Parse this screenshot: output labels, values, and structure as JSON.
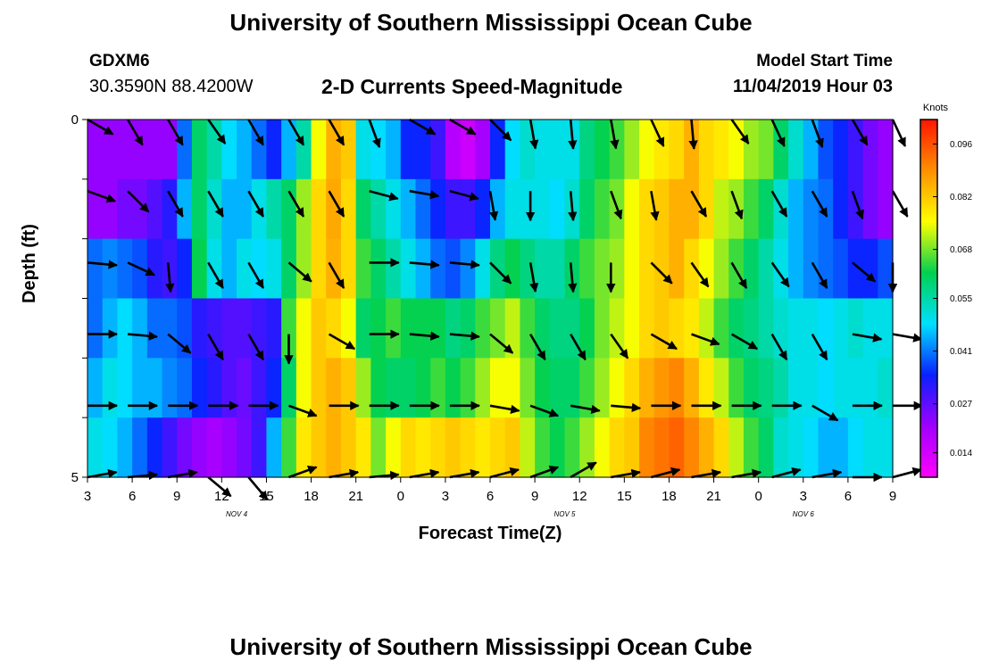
{
  "header": {
    "title": "University of Southern Mississippi Ocean Cube",
    "station": "GDXM6",
    "coordinates": "30.3590N 88.4200W",
    "subtitle": "2-D Currents Speed-Magnitude",
    "model_start_label": "Model Start Time",
    "model_start_value": "11/04/2019 Hour 03"
  },
  "footer": {
    "title": "University of Southern Mississippi Ocean Cube"
  },
  "chart_data": {
    "type": "heatmap",
    "title": "2-D Currents Speed-Magnitude",
    "xlabel": "Forecast Time(Z)",
    "ylabel": "Depth (ft)",
    "x_tick_labels": [
      "3",
      "6",
      "9",
      "12",
      "15",
      "18",
      "21",
      "0",
      "3",
      "6",
      "9",
      "12",
      "15",
      "18",
      "21",
      "0",
      "3",
      "6",
      "9"
    ],
    "date_labels": [
      {
        "label": "NOV 4",
        "hours_from_start": 10
      },
      {
        "label": "NOV 5",
        "hours_from_start": 32
      },
      {
        "label": "NOV 6",
        "hours_from_start": 48
      }
    ],
    "y_tick_labels": [
      "0",
      "5"
    ],
    "y_range_ft": [
      0,
      5
    ],
    "depth_rows": 5,
    "hours_range": [
      0,
      54
    ],
    "colorbar": {
      "unit": "Knots",
      "ticks": [
        "0.096",
        "0.082",
        "0.068",
        "0.055",
        "0.041",
        "0.027",
        "0.014"
      ],
      "range": [
        0.0075,
        0.1025
      ],
      "stops": [
        "#ff00ff",
        "#a000ff",
        "#0a20ff",
        "#00e0ff",
        "#00d050",
        "#ffff00",
        "#ff9000",
        "#ff1500"
      ]
    },
    "speed_knots": [
      [
        0.022,
        0.022,
        0.022,
        0.022,
        0.022,
        0.022,
        0.04,
        0.06,
        0.055,
        0.048,
        0.045,
        0.04,
        0.035,
        0.045,
        0.055,
        0.075,
        0.085,
        0.082,
        0.05,
        0.048,
        0.045,
        0.035,
        0.035,
        0.03,
        0.018,
        0.015,
        0.02,
        0.035,
        0.048,
        0.052,
        0.05,
        0.05,
        0.05,
        0.058,
        0.062,
        0.065,
        0.07,
        0.075,
        0.078,
        0.08,
        0.085,
        0.08,
        0.078,
        0.075,
        0.07,
        0.068,
        0.06,
        0.052,
        0.045,
        0.038,
        0.035,
        0.03,
        0.025,
        0.022
      ],
      [
        0.022,
        0.022,
        0.025,
        0.025,
        0.028,
        0.032,
        0.045,
        0.06,
        0.052,
        0.045,
        0.045,
        0.05,
        0.055,
        0.06,
        0.07,
        0.08,
        0.086,
        0.08,
        0.06,
        0.055,
        0.05,
        0.045,
        0.04,
        0.035,
        0.03,
        0.03,
        0.035,
        0.045,
        0.05,
        0.05,
        0.05,
        0.048,
        0.052,
        0.06,
        0.065,
        0.068,
        0.075,
        0.08,
        0.082,
        0.085,
        0.085,
        0.08,
        0.072,
        0.07,
        0.065,
        0.06,
        0.052,
        0.045,
        0.042,
        0.04,
        0.035,
        0.03,
        0.025,
        0.022
      ],
      [
        0.04,
        0.042,
        0.04,
        0.038,
        0.032,
        0.03,
        0.035,
        0.062,
        0.05,
        0.045,
        0.05,
        0.048,
        0.05,
        0.06,
        0.07,
        0.08,
        0.085,
        0.08,
        0.065,
        0.06,
        0.055,
        0.05,
        0.045,
        0.04,
        0.038,
        0.042,
        0.05,
        0.058,
        0.062,
        0.058,
        0.055,
        0.055,
        0.06,
        0.065,
        0.068,
        0.07,
        0.075,
        0.08,
        0.082,
        0.085,
        0.08,
        0.075,
        0.07,
        0.065,
        0.06,
        0.055,
        0.05,
        0.045,
        0.042,
        0.04,
        0.038,
        0.035,
        0.035,
        0.038
      ],
      [
        0.04,
        0.045,
        0.048,
        0.045,
        0.04,
        0.04,
        0.038,
        0.032,
        0.03,
        0.028,
        0.028,
        0.03,
        0.032,
        0.065,
        0.075,
        0.082,
        0.08,
        0.075,
        0.06,
        0.062,
        0.065,
        0.062,
        0.062,
        0.062,
        0.058,
        0.06,
        0.065,
        0.068,
        0.072,
        0.065,
        0.06,
        0.058,
        0.058,
        0.062,
        0.068,
        0.072,
        0.075,
        0.08,
        0.082,
        0.08,
        0.078,
        0.072,
        0.065,
        0.06,
        0.058,
        0.055,
        0.052,
        0.05,
        0.05,
        0.048,
        0.05,
        0.052,
        0.05,
        0.05
      ],
      [
        0.045,
        0.05,
        0.048,
        0.045,
        0.045,
        0.042,
        0.04,
        0.035,
        0.032,
        0.028,
        0.026,
        0.03,
        0.035,
        0.06,
        0.075,
        0.082,
        0.085,
        0.082,
        0.07,
        0.062,
        0.06,
        0.06,
        0.062,
        0.065,
        0.062,
        0.065,
        0.07,
        0.075,
        0.075,
        0.068,
        0.062,
        0.06,
        0.06,
        0.065,
        0.07,
        0.075,
        0.08,
        0.085,
        0.088,
        0.09,
        0.085,
        0.078,
        0.072,
        0.065,
        0.06,
        0.058,
        0.055,
        0.05,
        0.05,
        0.048,
        0.05,
        0.05,
        0.05,
        0.052
      ],
      [
        0.05,
        0.048,
        0.045,
        0.04,
        0.035,
        0.03,
        0.025,
        0.022,
        0.02,
        0.022,
        0.025,
        0.03,
        0.045,
        0.065,
        0.078,
        0.082,
        0.085,
        0.082,
        0.078,
        0.068,
        0.075,
        0.08,
        0.078,
        0.08,
        0.082,
        0.08,
        0.078,
        0.08,
        0.082,
        0.072,
        0.065,
        0.062,
        0.065,
        0.07,
        0.075,
        0.08,
        0.082,
        0.09,
        0.092,
        0.094,
        0.09,
        0.085,
        0.08,
        0.072,
        0.065,
        0.06,
        0.052,
        0.05,
        0.048,
        0.045,
        0.045,
        0.048,
        0.05,
        0.05
      ]
    ],
    "arrow_rows": [
      {
        "depth_ft": 0.0,
        "dirs_deg": [
          120,
          150,
          150,
          145,
          150,
          150,
          150,
          160,
          120,
          120,
          135,
          170,
          175,
          170,
          155,
          175,
          145,
          155,
          160,
          150,
          155
        ]
      },
      {
        "depth_ft": 1.0,
        "dirs_deg": [
          110,
          135,
          150,
          150,
          150,
          150,
          150,
          105,
          100,
          105,
          170,
          180,
          175,
          160,
          170,
          150,
          160,
          150,
          150,
          160,
          150
        ]
      },
      {
        "depth_ft": 2.0,
        "dirs_deg": [
          95,
          115,
          175,
          150,
          150,
          130,
          150,
          90,
          95,
          95,
          135,
          170,
          175,
          180,
          135,
          145,
          150,
          145,
          150,
          130,
          180
        ]
      },
      {
        "depth_ft": 3.0,
        "dirs_deg": [
          90,
          95,
          130,
          150,
          150,
          180,
          120,
          90,
          95,
          95,
          130,
          150,
          150,
          145,
          120,
          110,
          120,
          150,
          150,
          100,
          100
        ]
      },
      {
        "depth_ft": 4.0,
        "dirs_deg": [
          90,
          90,
          90,
          90,
          90,
          110,
          90,
          90,
          90,
          90,
          100,
          110,
          100,
          95,
          90,
          90,
          90,
          90,
          120,
          90,
          90
        ]
      },
      {
        "depth_ft": 5.0,
        "dirs_deg": [
          80,
          85,
          80,
          130,
          140,
          70,
          80,
          85,
          80,
          80,
          75,
          70,
          60,
          80,
          75,
          80,
          80,
          75,
          80,
          90,
          75
        ]
      }
    ]
  }
}
